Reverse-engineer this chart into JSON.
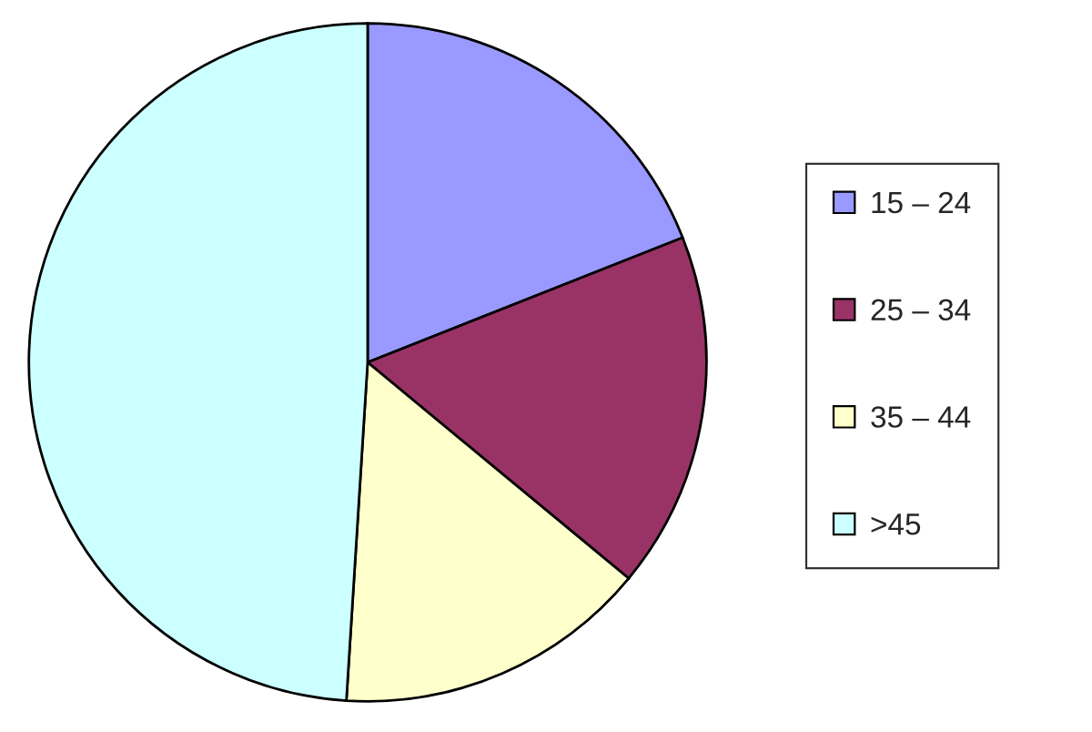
{
  "chart_data": {
    "type": "pie",
    "categories": [
      "15 – 24",
      "25 – 34",
      "35 – 44",
      ">45"
    ],
    "values": [
      19,
      17,
      15,
      49
    ],
    "colors": [
      "#9999ff",
      "#993366",
      "#ffffcc",
      "#ccffff"
    ],
    "legend": "right"
  }
}
